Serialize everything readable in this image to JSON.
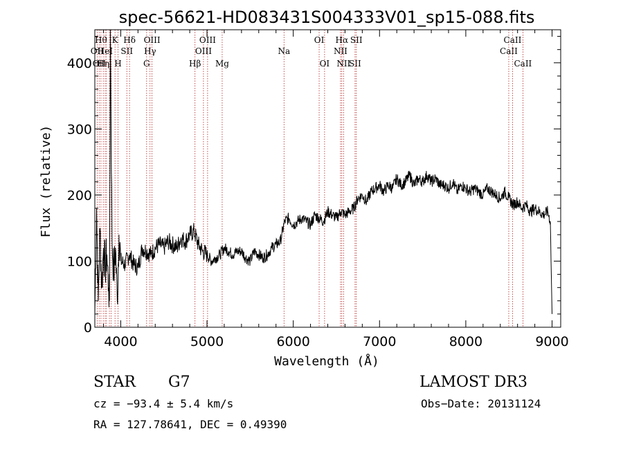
{
  "chart_data": {
    "type": "line",
    "title": "spec-56621-HD083431S004333V01_sp15-088.fits",
    "xlabel": "Wavelength (Å)",
    "ylabel": "Flux (relative)",
    "xlim": [
      3700,
      9100
    ],
    "ylim": [
      0,
      450
    ],
    "x_ticks": [
      4000,
      5000,
      6000,
      7000,
      8000,
      9000
    ],
    "y_ticks": [
      0,
      100,
      200,
      300,
      400
    ],
    "line_color": "#000000",
    "marker_color": "#b22222",
    "series": [
      {
        "name": "flux",
        "x": [
          3700,
          3720,
          3740,
          3760,
          3780,
          3800,
          3820,
          3840,
          3860,
          3870,
          3880,
          3900,
          3920,
          3940,
          3960,
          3980,
          4000,
          4050,
          4100,
          4150,
          4200,
          4250,
          4300,
          4350,
          4400,
          4450,
          4500,
          4550,
          4600,
          4650,
          4700,
          4750,
          4800,
          4850,
          4900,
          4950,
          5000,
          5050,
          5100,
          5150,
          5200,
          5250,
          5300,
          5350,
          5400,
          5450,
          5500,
          5550,
          5600,
          5650,
          5700,
          5750,
          5800,
          5850,
          5900,
          5950,
          6000,
          6050,
          6100,
          6150,
          6200,
          6250,
          6300,
          6350,
          6400,
          6450,
          6500,
          6550,
          6600,
          6650,
          6700,
          6750,
          6800,
          6850,
          6900,
          6950,
          7000,
          7050,
          7100,
          7150,
          7200,
          7250,
          7300,
          7350,
          7400,
          7450,
          7500,
          7550,
          7600,
          7650,
          7700,
          7750,
          7800,
          7850,
          7900,
          7950,
          8000,
          8050,
          8100,
          8150,
          8200,
          8250,
          8300,
          8350,
          8400,
          8450,
          8500,
          8550,
          8600,
          8650,
          8700,
          8750,
          8800,
          8850,
          8900,
          8950,
          8980,
          9000
        ],
        "values": [
          20,
          180,
          40,
          150,
          60,
          120,
          90,
          110,
          60,
          40,
          450,
          130,
          80,
          120,
          40,
          140,
          100,
          95,
          110,
          95,
          90,
          120,
          115,
          110,
          120,
          125,
          120,
          130,
          125,
          120,
          135,
          130,
          140,
          145,
          125,
          115,
          110,
          100,
          105,
          110,
          120,
          115,
          110,
          115,
          115,
          105,
          100,
          115,
          110,
          105,
          110,
          120,
          125,
          130,
          160,
          165,
          155,
          160,
          165,
          160,
          155,
          170,
          165,
          160,
          175,
          170,
          165,
          175,
          170,
          175,
          180,
          195,
          200,
          190,
          205,
          210,
          215,
          205,
          215,
          210,
          225,
          215,
          220,
          230,
          215,
          225,
          220,
          230,
          220,
          225,
          215,
          215,
          210,
          220,
          205,
          215,
          210,
          205,
          210,
          205,
          200,
          210,
          205,
          200,
          195,
          205,
          195,
          185,
          190,
          180,
          185,
          175,
          180,
          175,
          170,
          175,
          160,
          20
        ]
      }
    ],
    "lines": [
      {
        "wl": 3727,
        "label": "OII",
        "row": 2
      },
      {
        "wl": 3750,
        "label": "OII",
        "row": 3
      },
      {
        "wl": 3771,
        "label": "Hθ",
        "row": 1
      },
      {
        "wl": 3798,
        "label": "Hη",
        "row": 3
      },
      {
        "wl": 3820,
        "label": "HeI",
        "row": 2
      },
      {
        "wl": 3835,
        "label": "",
        "row": 0
      },
      {
        "wl": 3869,
        "label": "",
        "row": 0
      },
      {
        "wl": 3890,
        "label": "",
        "row": 0
      },
      {
        "wl": 3934,
        "label": "K",
        "row": 1
      },
      {
        "wl": 3969,
        "label": "H",
        "row": 3
      },
      {
        "wl": 4071,
        "label": "SII",
        "row": 2
      },
      {
        "wl": 4102,
        "label": "Hδ",
        "row": 1
      },
      {
        "wl": 4300,
        "label": "G",
        "row": 3
      },
      {
        "wl": 4340,
        "label": "Hγ",
        "row": 2
      },
      {
        "wl": 4363,
        "label": "OIII",
        "row": 1
      },
      {
        "wl": 4861,
        "label": "Hβ",
        "row": 3
      },
      {
        "wl": 4959,
        "label": "OIII",
        "row": 2
      },
      {
        "wl": 5007,
        "label": "OIII",
        "row": 1
      },
      {
        "wl": 5176,
        "label": "Mg",
        "row": 3
      },
      {
        "wl": 5893,
        "label": "Na",
        "row": 2
      },
      {
        "wl": 6300,
        "label": "OI",
        "row": 1
      },
      {
        "wl": 6363,
        "label": "OI",
        "row": 3
      },
      {
        "wl": 6548,
        "label": "NII",
        "row": 2
      },
      {
        "wl": 6563,
        "label": "Hα",
        "row": 1
      },
      {
        "wl": 6583,
        "label": "NII",
        "row": 3
      },
      {
        "wl": 6716,
        "label": "SII",
        "row": 3
      },
      {
        "wl": 6731,
        "label": "SII",
        "row": 1
      },
      {
        "wl": 8498,
        "label": "CaII",
        "row": 2
      },
      {
        "wl": 8542,
        "label": "CaII",
        "row": 1
      },
      {
        "wl": 8662,
        "label": "CaII",
        "row": 3
      }
    ]
  },
  "info": {
    "class": "STAR",
    "subclass": "G7",
    "survey": "LAMOST DR3",
    "redshift": "cz = −93.4 ± 5.4 km/s",
    "obs_date": "Obs−Date: 20131124",
    "coords": "RA = 127.78641, DEC =    0.49390"
  }
}
